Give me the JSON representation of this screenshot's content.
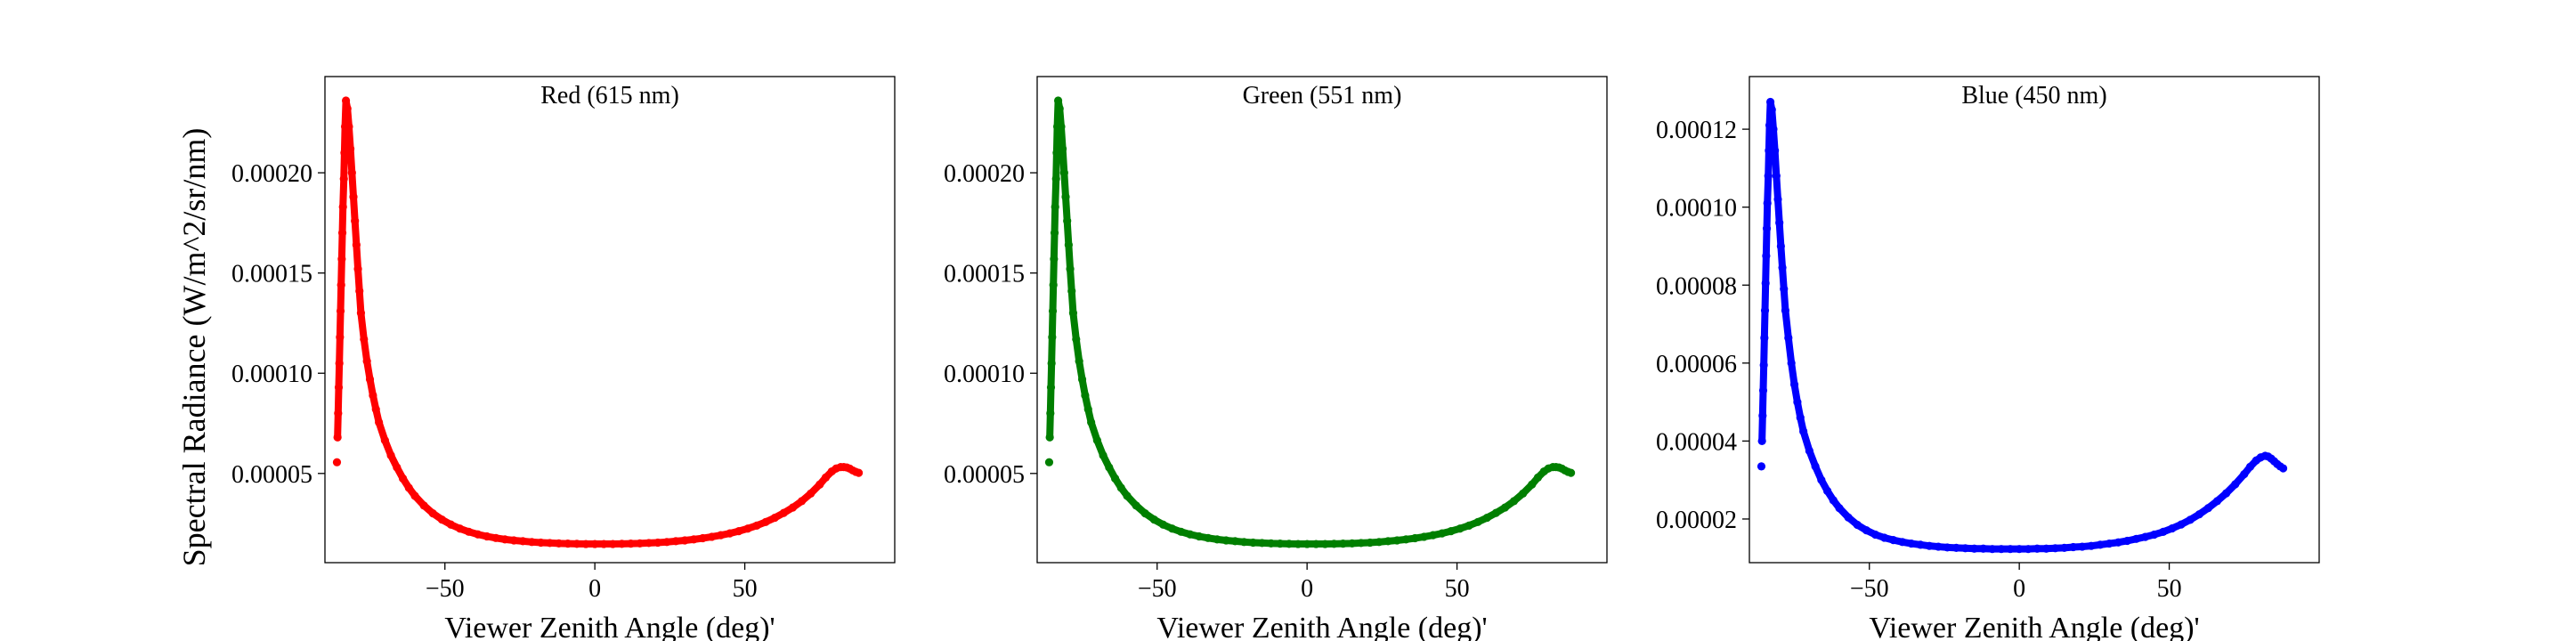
{
  "figure": {
    "ylabel": "Spectral Radiance (W/m^2/sr/nm)"
  },
  "chart_data": [
    {
      "type": "scatter",
      "title": "Red (615 nm)",
      "xlabel": "Viewer Zenith Angle (deg)'",
      "ylabel": "Spectral Radiance (W/m^2/sr/nm)",
      "xlim": [
        -90,
        100
      ],
      "ylim": [
        5.5e-06,
        0.000248
      ],
      "xticks": [
        -50,
        0,
        50
      ],
      "xtick_labels": [
        "−50",
        "0",
        "50"
      ],
      "yticks": [
        5e-05,
        0.0001,
        0.00015,
        0.0002
      ],
      "ytick_labels": [
        "0.00005",
        "0.00010",
        "0.00015",
        "0.00020"
      ],
      "grid": false,
      "color": "#ff0000",
      "series": [
        {
          "x": [
            -86,
            -85.8,
            -85.6,
            -85.4,
            -85.2,
            -85,
            -84.8,
            -84.6,
            -84.4,
            -84.2,
            -84,
            -83.7,
            -83.5,
            -83.3,
            -83,
            -82.5,
            -82,
            -81.5,
            -81,
            -80.5,
            -80,
            -79.5,
            -79,
            -78.5,
            -78,
            -77,
            -76,
            -75,
            -74,
            -73,
            -72,
            -70,
            -68,
            -66,
            -64,
            -62,
            -60,
            -57,
            -54,
            -51,
            -48,
            -45,
            -42,
            -39,
            -36,
            -33,
            -30,
            -27,
            -24,
            -21,
            -18,
            -15,
            -12,
            -9,
            -6,
            -3,
            0,
            3,
            6,
            9,
            12,
            15,
            18,
            21,
            24,
            27,
            30,
            33,
            36,
            39,
            42,
            45,
            48,
            51,
            54,
            57,
            60,
            63,
            66,
            69,
            72,
            75,
            77,
            79,
            80.5,
            82,
            83,
            84,
            85,
            86,
            87,
            88
          ],
          "y": [
            5.56e-05,
            6.8e-05,
            8e-05,
            9.3e-05,
            0.000105,
            0.000118,
            0.000131,
            0.000144,
            0.000157,
            0.00017,
            0.000183,
            0.000197,
            0.00021,
            0.000223,
            0.000236,
            0.000232,
            0.000223,
            0.000212,
            0.0002,
            0.000188,
            0.000176,
            0.000164,
            0.000152,
            0.000141,
            0.00013,
            0.000117,
            0.000106,
            9.7e-05,
            8.9e-05,
            8.2e-05,
            7.55e-05,
            6.65e-05,
            5.9e-05,
            5.3e-05,
            4.75e-05,
            4.28e-05,
            3.88e-05,
            3.4e-05,
            3.01e-05,
            2.7e-05,
            2.45e-05,
            2.25e-05,
            2.09e-05,
            1.96e-05,
            1.86e-05,
            1.78e-05,
            1.71e-05,
            1.66e-05,
            1.62e-05,
            1.58e-05,
            1.55e-05,
            1.53e-05,
            1.51e-05,
            1.5e-05,
            1.49e-05,
            1.48e-05,
            1.48e-05,
            1.48e-05,
            1.48e-05,
            1.49e-05,
            1.5e-05,
            1.51e-05,
            1.53e-05,
            1.55e-05,
            1.58e-05,
            1.62e-05,
            1.66e-05,
            1.71e-05,
            1.77e-05,
            1.84e-05,
            1.92e-05,
            2.01e-05,
            2.12e-05,
            2.25e-05,
            2.4e-05,
            2.58e-05,
            2.79e-05,
            3.03e-05,
            3.3e-05,
            3.62e-05,
            4e-05,
            4.45e-05,
            4.8e-05,
            5.1e-05,
            5.25e-05,
            5.32e-05,
            5.32e-05,
            5.3e-05,
            5.24e-05,
            5.15e-05,
            5.08e-05,
            5.03e-05
          ]
        }
      ]
    },
    {
      "type": "scatter",
      "title": "Green (551 nm)",
      "xlabel": "Viewer Zenith Angle (deg)'",
      "ylabel": "",
      "xlim": [
        -90,
        100
      ],
      "ylim": [
        5.5e-06,
        0.000248
      ],
      "xticks": [
        -50,
        0,
        50
      ],
      "xtick_labels": [
        "−50",
        "0",
        "50"
      ],
      "yticks": [
        5e-05,
        0.0001,
        0.00015,
        0.0002
      ],
      "ytick_labels": [
        "0.00005",
        "0.00010",
        "0.00015",
        "0.00020"
      ],
      "grid": false,
      "color": "#007f00",
      "series": [
        {
          "x": [
            -86,
            -85.8,
            -85.6,
            -85.4,
            -85.2,
            -85,
            -84.8,
            -84.6,
            -84.4,
            -84.2,
            -84,
            -83.7,
            -83.5,
            -83.3,
            -83,
            -82.5,
            -82,
            -81.5,
            -81,
            -80.5,
            -80,
            -79.5,
            -79,
            -78.5,
            -78,
            -77,
            -76,
            -75,
            -74,
            -73,
            -72,
            -70,
            -68,
            -66,
            -64,
            -62,
            -60,
            -57,
            -54,
            -51,
            -48,
            -45,
            -42,
            -39,
            -36,
            -33,
            -30,
            -27,
            -24,
            -21,
            -18,
            -15,
            -12,
            -9,
            -6,
            -3,
            0,
            3,
            6,
            9,
            12,
            15,
            18,
            21,
            24,
            27,
            30,
            33,
            36,
            39,
            42,
            45,
            48,
            51,
            54,
            57,
            60,
            63,
            66,
            69,
            72,
            75,
            77,
            79,
            80.5,
            82,
            83,
            84,
            85,
            86,
            87,
            88
          ],
          "y": [
            5.56e-05,
            6.8e-05,
            8e-05,
            9.3e-05,
            0.000105,
            0.000118,
            0.000131,
            0.000144,
            0.000157,
            0.00017,
            0.000183,
            0.000197,
            0.00021,
            0.000223,
            0.000236,
            0.000232,
            0.000223,
            0.000212,
            0.0002,
            0.000188,
            0.000176,
            0.000164,
            0.000152,
            0.000141,
            0.00013,
            0.000117,
            0.000106,
            9.7e-05,
            8.9e-05,
            8.2e-05,
            7.55e-05,
            6.65e-05,
            5.9e-05,
            5.3e-05,
            4.75e-05,
            4.28e-05,
            3.88e-05,
            3.4e-05,
            3.01e-05,
            2.7e-05,
            2.45e-05,
            2.25e-05,
            2.09e-05,
            1.96e-05,
            1.86e-05,
            1.78e-05,
            1.71e-05,
            1.66e-05,
            1.62e-05,
            1.58e-05,
            1.55e-05,
            1.53e-05,
            1.51e-05,
            1.5e-05,
            1.49e-05,
            1.48e-05,
            1.48e-05,
            1.48e-05,
            1.48e-05,
            1.49e-05,
            1.5e-05,
            1.51e-05,
            1.53e-05,
            1.55e-05,
            1.58e-05,
            1.62e-05,
            1.66e-05,
            1.71e-05,
            1.77e-05,
            1.84e-05,
            1.92e-05,
            2.01e-05,
            2.12e-05,
            2.25e-05,
            2.4e-05,
            2.58e-05,
            2.79e-05,
            3.03e-05,
            3.3e-05,
            3.62e-05,
            4e-05,
            4.45e-05,
            4.8e-05,
            5.1e-05,
            5.25e-05,
            5.32e-05,
            5.32e-05,
            5.3e-05,
            5.24e-05,
            5.15e-05,
            5.08e-05,
            5.03e-05
          ]
        }
      ]
    },
    {
      "type": "scatter",
      "title": "Blue (450 nm)",
      "xlabel": "Viewer Zenith Angle (deg)'",
      "ylabel": "",
      "xlim": [
        -90,
        100
      ],
      "ylim": [
        8.8e-06,
        0.0001335
      ],
      "xticks": [
        -50,
        0,
        50
      ],
      "xtick_labels": [
        "−50",
        "0",
        "50"
      ],
      "yticks": [
        2e-05,
        4e-05,
        6e-05,
        8e-05,
        0.0001,
        0.00012
      ],
      "ytick_labels": [
        "0.00002",
        "0.00004",
        "0.00006",
        "0.00008",
        "0.00010",
        "0.00012"
      ],
      "grid": false,
      "color": "#0000ff",
      "series": [
        {
          "x": [
            -86,
            -85.8,
            -85.6,
            -85.4,
            -85.2,
            -85,
            -84.8,
            -84.6,
            -84.4,
            -84.2,
            -84,
            -83.7,
            -83.5,
            -83.3,
            -83,
            -82.5,
            -82,
            -81.5,
            -81,
            -80.5,
            -80,
            -79.5,
            -79,
            -78.5,
            -78,
            -77,
            -76,
            -75,
            -74,
            -73,
            -72,
            -70,
            -68,
            -66,
            -64,
            -62,
            -60,
            -57,
            -54,
            -51,
            -48,
            -45,
            -42,
            -39,
            -36,
            -33,
            -30,
            -27,
            -24,
            -21,
            -18,
            -15,
            -12,
            -9,
            -6,
            -3,
            0,
            3,
            6,
            9,
            12,
            15,
            18,
            21,
            24,
            27,
            30,
            33,
            36,
            39,
            42,
            45,
            48,
            51,
            54,
            57,
            60,
            63,
            66,
            69,
            72,
            75,
            77,
            79,
            80.5,
            82,
            83,
            84,
            85,
            86,
            87,
            88
          ],
          "y": [
            3.35e-05,
            4e-05,
            4.65e-05,
            5.3e-05,
            5.95e-05,
            6.65e-05,
            7.35e-05,
            8.05e-05,
            8.75e-05,
            9.45e-05,
            0.000101,
            0.000108,
            0.0001145,
            0.000121,
            0.000127,
            0.000125,
            0.00012,
            0.0001145,
            0.000108,
            0.000102,
            9.6e-05,
            9e-05,
            8.45e-05,
            7.9e-05,
            7.35e-05,
            6.65e-05,
            6e-05,
            5.45e-05,
            5e-05,
            4.6e-05,
            4.25e-05,
            3.75e-05,
            3.35e-05,
            3e-05,
            2.72e-05,
            2.48e-05,
            2.28e-05,
            2.04e-05,
            1.85e-05,
            1.71e-05,
            1.6e-05,
            1.52e-05,
            1.46e-05,
            1.41e-05,
            1.37e-05,
            1.34e-05,
            1.31e-05,
            1.29e-05,
            1.27e-05,
            1.26e-05,
            1.25e-05,
            1.24e-05,
            1.24e-05,
            1.23e-05,
            1.23e-05,
            1.23e-05,
            1.23e-05,
            1.23e-05,
            1.24e-05,
            1.24e-05,
            1.25e-05,
            1.26e-05,
            1.28e-05,
            1.29e-05,
            1.31e-05,
            1.34e-05,
            1.37e-05,
            1.4e-05,
            1.44e-05,
            1.49e-05,
            1.54e-05,
            1.6e-05,
            1.67e-05,
            1.76e-05,
            1.86e-05,
            1.98e-05,
            2.12e-05,
            2.28e-05,
            2.46e-05,
            2.66e-05,
            2.89e-05,
            3.15e-05,
            3.34e-05,
            3.5e-05,
            3.58e-05,
            3.62e-05,
            3.6e-05,
            3.55e-05,
            3.48e-05,
            3.41e-05,
            3.35e-05,
            3.3e-05
          ]
        }
      ]
    }
  ]
}
